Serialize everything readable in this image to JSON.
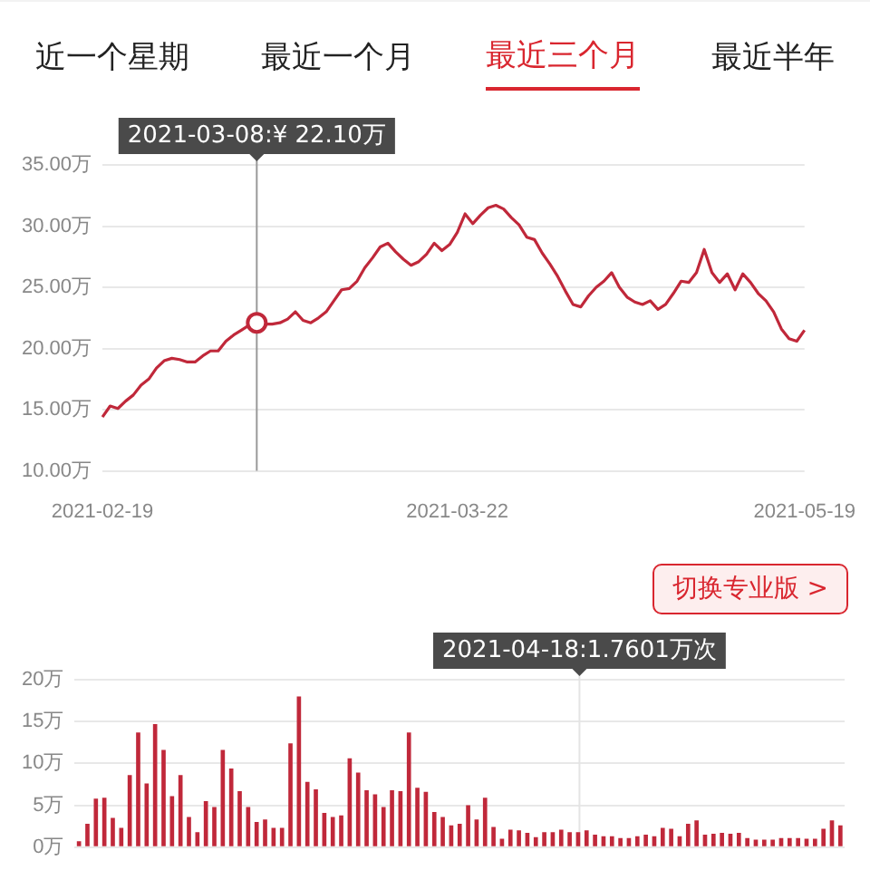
{
  "chart_data": [
    {
      "type": "line",
      "annotations": [
        "近一个星期",
        "最近一个月",
        "最近三个月",
        "最近半年",
        "2021-03-08:¥ 22.10万"
      ],
      "categories": [
        "2021-02-19",
        null,
        null,
        null,
        null,
        null,
        null,
        null,
        null,
        null,
        null,
        null,
        null,
        null,
        null,
        null,
        null,
        null,
        null,
        null,
        null,
        null,
        null,
        null,
        null,
        null,
        null,
        null,
        null,
        null,
        null,
        null,
        null,
        null,
        null,
        null,
        null,
        null,
        null,
        null,
        null,
        null,
        null,
        null,
        null,
        null,
        "2021-03-22",
        null,
        null,
        null,
        null,
        null,
        null,
        null,
        null,
        null,
        null,
        null,
        null,
        null,
        null,
        null,
        null,
        null,
        null,
        null,
        null,
        null,
        null,
        null,
        null,
        null,
        null,
        null,
        null,
        null,
        null,
        null,
        null,
        null,
        null,
        null,
        null,
        null,
        null,
        null,
        null,
        null,
        null,
        null,
        null,
        "2021-05-19"
      ],
      "series": [
        {
          "color": "#c0283a",
          "values": [
            14.4,
            15.3,
            15.1,
            15.7,
            16.2,
            17.0,
            17.5,
            18.4,
            19.0,
            19.2,
            19.1,
            18.9,
            18.9,
            19.4,
            19.8,
            19.8,
            20.6,
            21.1,
            21.5,
            21.9,
            22.1,
            22.0,
            22.0,
            22.1,
            22.4,
            23.0,
            22.3,
            22.1,
            22.5,
            23.0,
            23.9,
            24.8,
            24.9,
            25.5,
            26.6,
            27.4,
            28.3,
            28.6,
            27.9,
            27.3,
            26.8,
            27.1,
            27.7,
            28.6,
            28.0,
            28.5,
            29.5,
            31.0,
            30.2,
            30.9,
            31.5,
            31.7,
            31.4,
            30.7,
            30.1,
            29.1,
            28.9,
            27.8,
            26.9,
            25.9,
            24.7,
            23.6,
            23.4,
            24.3,
            25.0,
            25.5,
            26.2,
            25.0,
            24.2,
            23.8,
            23.6,
            23.9,
            23.2,
            23.6,
            24.5,
            25.5,
            25.4,
            26.2,
            28.1,
            26.2,
            25.4,
            26.1,
            24.8,
            26.1,
            25.4,
            24.5,
            23.9,
            23.0,
            21.6,
            20.8,
            20.6,
            21.5
          ]
        }
      ],
      "ylim": [
        10,
        35
      ],
      "yticks": [
        {
          "value": 10,
          "label": "10.00万"
        },
        {
          "value": 15,
          "label": "15.00万"
        },
        {
          "value": 20,
          "label": "20.00万"
        },
        {
          "value": 25,
          "label": "25.00万"
        },
        {
          "value": 30,
          "label": "30.00万"
        },
        {
          "value": 35,
          "label": "35.00万"
        }
      ],
      "grid": "y",
      "legend": false,
      "marker": "none"
    },
    {
      "type": "bar",
      "annotations": [
        "切换专业版 >",
        "2021-04-18:1.7601万次"
      ],
      "categories": [
        null,
        null,
        null,
        null,
        null,
        null,
        null,
        null,
        null,
        null,
        null,
        null,
        null,
        null,
        null,
        null,
        null,
        null,
        null,
        null,
        null,
        null,
        null,
        null,
        null,
        null,
        null,
        null,
        null,
        null,
        null,
        null,
        null,
        null,
        null,
        null,
        null,
        null,
        null,
        null,
        null,
        null,
        null,
        null,
        null,
        null,
        null,
        null,
        null,
        null,
        null,
        null,
        null,
        null,
        null,
        null,
        null,
        null,
        null,
        null,
        null,
        null,
        null,
        null,
        null,
        null,
        null,
        null,
        null,
        null,
        null,
        null,
        null,
        null,
        null,
        null,
        null,
        null,
        null,
        null,
        null,
        null,
        null,
        null,
        null,
        null,
        null,
        null,
        null,
        null,
        null
      ],
      "series": [
        {
          "color": "#c0283a",
          "values": [
            0.7,
            2.8,
            5.8,
            5.9,
            3.5,
            2.3,
            8.6,
            13.7,
            7.6,
            14.7,
            11.6,
            6.1,
            8.6,
            3.6,
            1.8,
            5.5,
            4.8,
            11.6,
            9.4,
            6.7,
            4.8,
            3.0,
            3.3,
            2.3,
            2.3,
            12.4,
            18.0,
            7.8,
            6.9,
            4.1,
            3.6,
            3.8,
            10.6,
            8.9,
            6.8,
            6.3,
            4.8,
            6.8,
            6.7,
            13.7,
            7.1,
            6.6,
            4.2,
            3.6,
            2.6,
            2.8,
            5.0,
            3.3,
            5.9,
            2.4,
            1.0,
            2.1,
            2.0,
            1.7,
            1.2,
            1.8,
            1.8,
            2.1,
            1.8,
            1.8,
            2.0,
            1.5,
            1.3,
            1.3,
            1.1,
            1.1,
            1.3,
            1.5,
            1.3,
            2.3,
            2.2,
            1.3,
            2.8,
            3.2,
            1.5,
            1.6,
            1.7,
            1.6,
            1.7,
            1.1,
            0.9,
            0.9,
            0.9,
            1.1,
            1.1,
            1.1,
            1.0,
            1.0,
            2.2,
            3.2,
            2.6
          ]
        }
      ],
      "ylim": [
        0,
        20
      ],
      "yticks": [
        {
          "value": 0,
          "label": "0万"
        },
        {
          "value": 5,
          "label": "5万"
        },
        {
          "value": 10,
          "label": "10万"
        },
        {
          "value": 15,
          "label": "15万"
        },
        {
          "value": 20,
          "label": "20万"
        }
      ],
      "grid": "y",
      "legend": false,
      "tick_labels": "y"
    }
  ]
}
